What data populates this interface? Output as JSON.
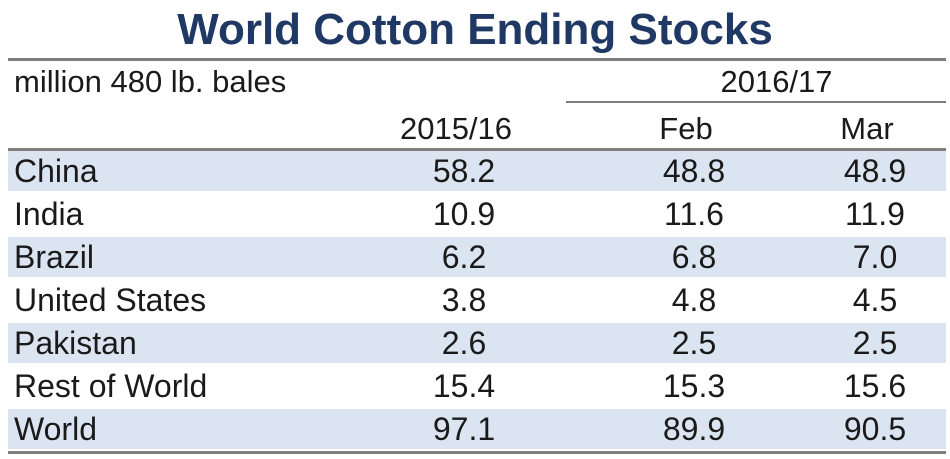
{
  "title": "World Cotton Ending Stocks",
  "units_label": "million 480 lb. bales",
  "group_header": "2016/17",
  "columns": [
    "2015/16",
    "Feb",
    "Mar"
  ],
  "chart_data": {
    "type": "table",
    "title": "World Cotton Ending Stocks",
    "units": "million 480 lb. bales",
    "column_group": "2016/17",
    "columns": [
      "2015/16",
      "Feb",
      "Mar"
    ],
    "rows": [
      {
        "label": "China",
        "values": [
          "58.2",
          "48.8",
          "48.9"
        ]
      },
      {
        "label": "India",
        "values": [
          "10.9",
          "11.6",
          "11.9"
        ]
      },
      {
        "label": "Brazil",
        "values": [
          "6.2",
          "6.8",
          "7.0"
        ]
      },
      {
        "label": "United States",
        "values": [
          "3.8",
          "4.8",
          "4.5"
        ]
      },
      {
        "label": "Pakistan",
        "values": [
          "2.6",
          "2.5",
          "2.5"
        ]
      },
      {
        "label": "Rest of World",
        "values": [
          "15.4",
          "15.3",
          "15.6"
        ]
      },
      {
        "label": "World",
        "values": [
          "97.1",
          "89.9",
          "90.5"
        ]
      }
    ]
  },
  "colors": {
    "title": "#1f3864",
    "row_shade": "#dbe5f1",
    "rule": "#7f7f7f"
  }
}
